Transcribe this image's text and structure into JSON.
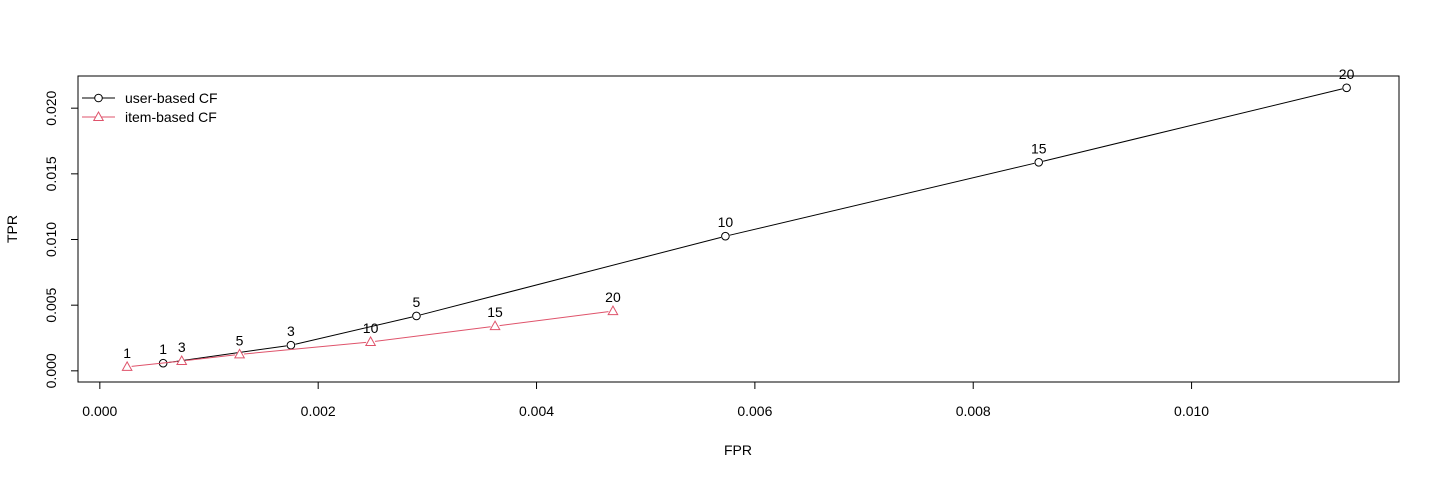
{
  "chart_data": {
    "type": "line",
    "title": "",
    "xlabel": "FPR",
    "ylabel": "TPR",
    "xlim": [
      -0.0002,
      0.0119
    ],
    "ylim": [
      -0.00085,
      0.02245
    ],
    "xticks": [
      0.0,
      0.002,
      0.004,
      0.006,
      0.008,
      0.01
    ],
    "xtick_labels": [
      "0.000",
      "0.002",
      "0.004",
      "0.006",
      "0.008",
      "0.010"
    ],
    "yticks": [
      0.0,
      0.005,
      0.01,
      0.015,
      0.02
    ],
    "ytick_labels": [
      "0.000",
      "0.005",
      "0.010",
      "0.015",
      "0.020"
    ],
    "grid": false,
    "legend_position": "top-left",
    "series": [
      {
        "name": "user-based CF",
        "color": "#000000",
        "marker": "circle",
        "x": [
          0.00058,
          0.00175,
          0.0029,
          0.00573,
          0.0086,
          0.01142
        ],
        "y": [
          0.00058,
          0.00195,
          0.00418,
          0.01025,
          0.01588,
          0.02155
        ],
        "labels": [
          "1",
          "3",
          "5",
          "10",
          "15",
          "20"
        ]
      },
      {
        "name": "item-based CF",
        "color": "#DF536B",
        "marker": "triangle",
        "x": [
          0.00025,
          0.00075,
          0.00128,
          0.00248,
          0.00362,
          0.0047
        ],
        "y": [
          0.0003,
          0.00075,
          0.00125,
          0.0022,
          0.0034,
          0.00455
        ],
        "labels": [
          "1",
          "3",
          "5",
          "10",
          "15",
          "20"
        ]
      }
    ]
  }
}
